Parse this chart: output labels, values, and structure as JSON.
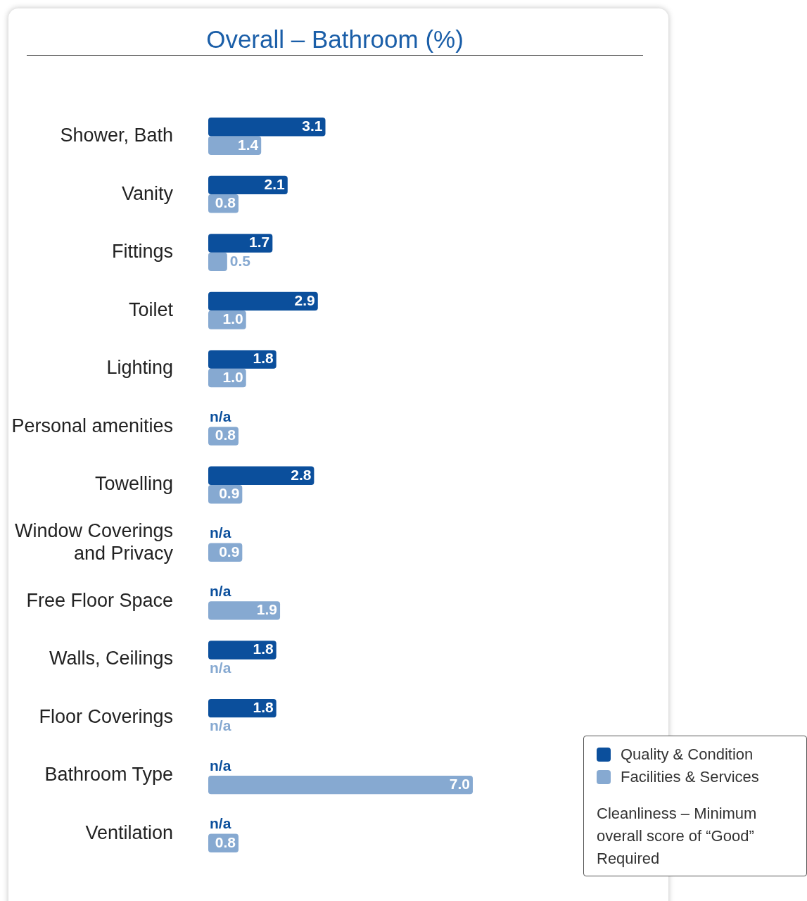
{
  "chart_data": {
    "type": "bar",
    "orientation": "horizontal",
    "title": "Overall – Bathroom (%)",
    "categories": [
      "Shower, Bath",
      "Vanity",
      "Fittings",
      "Toilet",
      "Lighting",
      "Personal amenities",
      "Towelling",
      "Window Coverings and Privacy",
      "Free Floor Space",
      "Walls, Ceilings",
      "Floor Coverings",
      "Bathroom Type",
      "Ventilation"
    ],
    "series": [
      {
        "name": "Quality & Condition",
        "color": "#0b4f9c",
        "values": [
          3.1,
          2.1,
          1.7,
          2.9,
          1.8,
          null,
          2.8,
          null,
          null,
          1.8,
          1.8,
          null,
          null
        ],
        "value_labels": [
          "3.1",
          "2.1",
          "1.7",
          "2.9",
          "1.8",
          "n/a",
          "2.8",
          "n/a",
          "n/a",
          "1.8",
          "1.8",
          "n/a",
          "n/a"
        ]
      },
      {
        "name": "Facilities & Services",
        "color": "#86a9d1",
        "values": [
          1.4,
          0.8,
          0.5,
          1.0,
          1.0,
          0.8,
          0.9,
          0.9,
          1.9,
          null,
          null,
          7.0,
          0.8
        ],
        "value_labels": [
          "1.4",
          "0.8",
          "0.5",
          "1.0",
          "1.0",
          "0.8",
          "0.9",
          "0.9",
          "1.9",
          "n/a",
          "n/a",
          "7.0",
          "0.8"
        ]
      }
    ],
    "legend": "bottom right",
    "annotations": [
      "Cleanliness – Minimum overall score of “Good” Required"
    ]
  }
}
